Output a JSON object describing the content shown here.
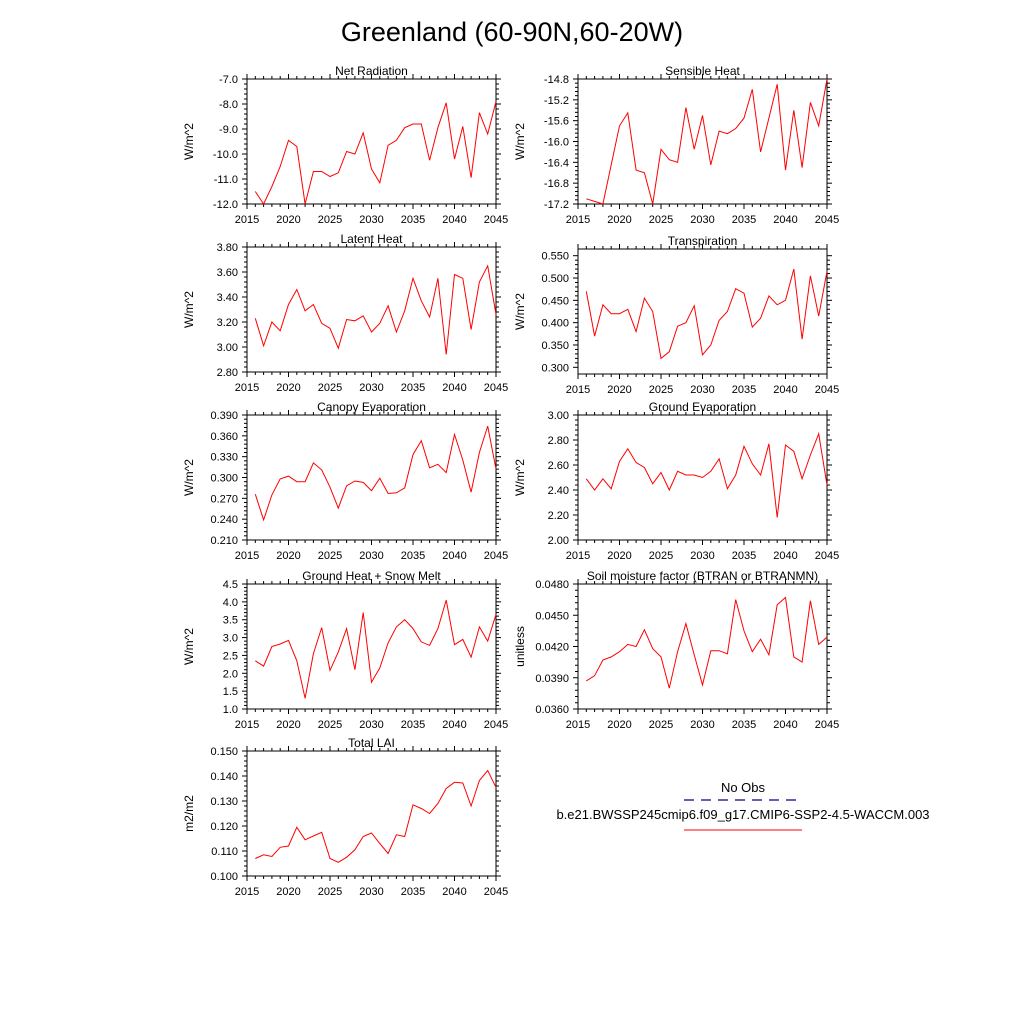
{
  "figure_title": "Greenland (60-90N,60-20W)",
  "colors": {
    "model_line": "#ff0000",
    "obs_line": "#00008b",
    "axis": "#000000"
  },
  "legend": {
    "obs_label": "No Obs",
    "model_label": "b.e21.BWSSP245cmip6.f09_g17.CMIP6-SSP2-4.5-WACCM.003"
  },
  "chart_data": [
    {
      "type": "line",
      "title": "Net Radiation",
      "ylabel": "W/m^2",
      "xlim": [
        2015,
        2045
      ],
      "ylim": [
        -12.0,
        -7.0
      ],
      "xticks": [
        2015,
        2020,
        2025,
        2030,
        2035,
        2040,
        2045
      ],
      "xtick_labels": [
        "2015",
        "2020",
        "2025",
        "2030",
        "2035",
        "2040",
        "2045"
      ],
      "yticks": [
        -12.0,
        -11.0,
        -10.0,
        -9.0,
        -8.0,
        -7.0
      ],
      "ytick_labels": [
        "-12.0",
        "-11.0",
        "-10.0",
        "-9.0",
        "-8.0",
        "-7.0"
      ],
      "x": [
        2016,
        2017,
        2018,
        2019,
        2020,
        2021,
        2022,
        2023,
        2024,
        2025,
        2026,
        2027,
        2028,
        2029,
        2030,
        2031,
        2032,
        2033,
        2034,
        2035,
        2036,
        2037,
        2038,
        2039,
        2040,
        2041,
        2042,
        2043,
        2044,
        2045
      ],
      "series": [
        {
          "values": [
            -11.5,
            -12.0,
            -11.3,
            -10.5,
            -9.45,
            -9.7,
            -12.0,
            -10.7,
            -10.7,
            -10.9,
            -10.75,
            -9.9,
            -10.0,
            -9.15,
            -10.6,
            -11.15,
            -9.65,
            -9.45,
            -8.95,
            -8.8,
            -8.8,
            -10.25,
            -8.95,
            -7.95,
            -10.2,
            -8.9,
            -10.95,
            -8.35,
            -9.2,
            -7.9
          ]
        }
      ]
    },
    {
      "type": "line",
      "title": "Sensible Heat",
      "ylabel": "W/m^2",
      "xlim": [
        2015,
        2045
      ],
      "ylim": [
        -17.2,
        -14.8
      ],
      "xticks": [
        2015,
        2020,
        2025,
        2030,
        2035,
        2040,
        2045
      ],
      "xtick_labels": [
        "2015",
        "2020",
        "2025",
        "2030",
        "2035",
        "2040",
        "2045"
      ],
      "yticks": [
        -17.2,
        -16.8,
        -16.4,
        -16.0,
        -15.6,
        -15.2,
        -14.8
      ],
      "ytick_labels": [
        "-17.2",
        "-16.8",
        "-16.4",
        "-16.0",
        "-15.6",
        "-15.2",
        "-14.8"
      ],
      "x": [
        2016,
        2017,
        2018,
        2019,
        2020,
        2021,
        2022,
        2023,
        2024,
        2025,
        2026,
        2027,
        2028,
        2029,
        2030,
        2031,
        2032,
        2033,
        2034,
        2035,
        2036,
        2037,
        2038,
        2039,
        2040,
        2041,
        2042,
        2043,
        2044,
        2045
      ],
      "series": [
        {
          "values": [
            -17.1,
            -17.15,
            -17.2,
            -16.45,
            -15.7,
            -15.45,
            -16.55,
            -16.6,
            -17.2,
            -16.15,
            -16.35,
            -16.4,
            -15.35,
            -16.15,
            -15.5,
            -16.45,
            -15.8,
            -15.85,
            -15.75,
            -15.55,
            -15.0,
            -16.2,
            -15.55,
            -14.9,
            -16.55,
            -15.4,
            -16.5,
            -15.25,
            -15.7,
            -14.8
          ]
        }
      ]
    },
    {
      "type": "line",
      "title": "Latent Heat",
      "ylabel": "W/m^2",
      "xlim": [
        2015,
        2045
      ],
      "ylim": [
        2.8,
        3.8
      ],
      "xticks": [
        2015,
        2020,
        2025,
        2030,
        2035,
        2040,
        2045
      ],
      "xtick_labels": [
        "2015",
        "2020",
        "2025",
        "2030",
        "2035",
        "2040",
        "2045"
      ],
      "yticks": [
        2.8,
        3.0,
        3.2,
        3.4,
        3.6,
        3.8
      ],
      "ytick_labels": [
        "2.80",
        "3.00",
        "3.20",
        "3.40",
        "3.60",
        "3.80"
      ],
      "x": [
        2016,
        2017,
        2018,
        2019,
        2020,
        2021,
        2022,
        2023,
        2024,
        2025,
        2026,
        2027,
        2028,
        2029,
        2030,
        2031,
        2032,
        2033,
        2034,
        2035,
        2036,
        2037,
        2038,
        2039,
        2040,
        2041,
        2042,
        2043,
        2044,
        2045
      ],
      "series": [
        {
          "values": [
            3.23,
            3.01,
            3.2,
            3.13,
            3.34,
            3.46,
            3.29,
            3.34,
            3.19,
            3.15,
            2.99,
            3.22,
            3.21,
            3.25,
            3.12,
            3.19,
            3.33,
            3.12,
            3.29,
            3.55,
            3.37,
            3.24,
            3.55,
            2.94,
            3.58,
            3.55,
            3.14,
            3.52,
            3.65,
            3.26
          ]
        }
      ]
    },
    {
      "type": "line",
      "title": "Transpiration",
      "ylabel": "W/m^2",
      "xlim": [
        2015,
        2045
      ],
      "ylim": [
        0.285,
        0.565
      ],
      "xticks": [
        2015,
        2020,
        2025,
        2030,
        2035,
        2040,
        2045
      ],
      "xtick_labels": [
        "2015",
        "2020",
        "2025",
        "2030",
        "2035",
        "2040",
        "2045"
      ],
      "yticks": [
        0.3,
        0.35,
        0.4,
        0.45,
        0.5,
        0.55
      ],
      "ytick_labels": [
        "0.300",
        "0.350",
        "0.400",
        "0.450",
        "0.500",
        "0.550"
      ],
      "x": [
        2016,
        2017,
        2018,
        2019,
        2020,
        2021,
        2022,
        2023,
        2024,
        2025,
        2026,
        2027,
        2028,
        2029,
        2030,
        2031,
        2032,
        2033,
        2034,
        2035,
        2036,
        2037,
        2038,
        2039,
        2040,
        2041,
        2042,
        2043,
        2044,
        2045
      ],
      "series": [
        {
          "values": [
            0.47,
            0.37,
            0.44,
            0.42,
            0.42,
            0.43,
            0.38,
            0.455,
            0.425,
            0.32,
            0.335,
            0.392,
            0.4,
            0.438,
            0.328,
            0.35,
            0.405,
            0.425,
            0.476,
            0.466,
            0.39,
            0.41,
            0.46,
            0.44,
            0.45,
            0.52,
            0.363,
            0.505,
            0.415,
            0.515
          ]
        }
      ]
    },
    {
      "type": "line",
      "title": "Canopy Evaporation",
      "ylabel": "W/m^2",
      "xlim": [
        2015,
        2045
      ],
      "ylim": [
        0.21,
        0.39
      ],
      "xticks": [
        2015,
        2020,
        2025,
        2030,
        2035,
        2040,
        2045
      ],
      "xtick_labels": [
        "2015",
        "2020",
        "2025",
        "2030",
        "2035",
        "2040",
        "2045"
      ],
      "yticks": [
        0.21,
        0.24,
        0.27,
        0.3,
        0.33,
        0.36,
        0.39
      ],
      "ytick_labels": [
        "0.210",
        "0.240",
        "0.270",
        "0.300",
        "0.330",
        "0.360",
        "0.390"
      ],
      "x": [
        2016,
        2017,
        2018,
        2019,
        2020,
        2021,
        2022,
        2023,
        2024,
        2025,
        2026,
        2027,
        2028,
        2029,
        2030,
        2031,
        2032,
        2033,
        2034,
        2035,
        2036,
        2037,
        2038,
        2039,
        2040,
        2041,
        2042,
        2043,
        2044,
        2045
      ],
      "series": [
        {
          "values": [
            0.276,
            0.239,
            0.275,
            0.298,
            0.302,
            0.294,
            0.294,
            0.321,
            0.311,
            0.286,
            0.256,
            0.288,
            0.295,
            0.293,
            0.281,
            0.299,
            0.277,
            0.278,
            0.285,
            0.333,
            0.353,
            0.314,
            0.319,
            0.307,
            0.362,
            0.325,
            0.279,
            0.336,
            0.374,
            0.312
          ]
        }
      ]
    },
    {
      "type": "line",
      "title": "Ground Evaporation",
      "ylabel": "W/m^2",
      "xlim": [
        2015,
        2045
      ],
      "ylim": [
        2.0,
        3.0
      ],
      "xticks": [
        2015,
        2020,
        2025,
        2030,
        2035,
        2040,
        2045
      ],
      "xtick_labels": [
        "2015",
        "2020",
        "2025",
        "2030",
        "2035",
        "2040",
        "2045"
      ],
      "yticks": [
        2.0,
        2.2,
        2.4,
        2.6,
        2.8,
        3.0
      ],
      "ytick_labels": [
        "2.00",
        "2.20",
        "2.40",
        "2.60",
        "2.80",
        "3.00"
      ],
      "x": [
        2016,
        2017,
        2018,
        2019,
        2020,
        2021,
        2022,
        2023,
        2024,
        2025,
        2026,
        2027,
        2028,
        2029,
        2030,
        2031,
        2032,
        2033,
        2034,
        2035,
        2036,
        2037,
        2038,
        2039,
        2040,
        2041,
        2042,
        2043,
        2044,
        2045
      ],
      "series": [
        {
          "values": [
            2.49,
            2.4,
            2.49,
            2.41,
            2.63,
            2.73,
            2.62,
            2.58,
            2.45,
            2.54,
            2.4,
            2.55,
            2.52,
            2.52,
            2.5,
            2.55,
            2.65,
            2.41,
            2.52,
            2.75,
            2.61,
            2.52,
            2.77,
            2.18,
            2.76,
            2.71,
            2.49,
            2.68,
            2.85,
            2.44
          ]
        }
      ]
    },
    {
      "type": "line",
      "title": "Ground Heat + Snow Melt",
      "ylabel": "W/m^2",
      "xlim": [
        2015,
        2045
      ],
      "ylim": [
        1.0,
        4.5
      ],
      "xticks": [
        2015,
        2020,
        2025,
        2030,
        2035,
        2040,
        2045
      ],
      "xtick_labels": [
        "2015",
        "2020",
        "2025",
        "2030",
        "2035",
        "2040",
        "2045"
      ],
      "yticks": [
        1.0,
        1.5,
        2.0,
        2.5,
        3.0,
        3.5,
        4.0,
        4.5
      ],
      "ytick_labels": [
        "1.0",
        "1.5",
        "2.0",
        "2.5",
        "3.0",
        "3.5",
        "4.0",
        "4.5"
      ],
      "x": [
        2016,
        2017,
        2018,
        2019,
        2020,
        2021,
        2022,
        2023,
        2024,
        2025,
        2026,
        2027,
        2028,
        2029,
        2030,
        2031,
        2032,
        2033,
        2034,
        2035,
        2036,
        2037,
        2038,
        2039,
        2040,
        2041,
        2042,
        2043,
        2044,
        2045
      ],
      "series": [
        {
          "values": [
            2.35,
            2.2,
            2.75,
            2.82,
            2.92,
            2.35,
            1.3,
            2.55,
            3.28,
            2.08,
            2.6,
            3.25,
            2.1,
            3.7,
            1.75,
            2.15,
            2.85,
            3.3,
            3.5,
            3.25,
            2.88,
            2.78,
            3.25,
            4.05,
            2.8,
            2.95,
            2.45,
            3.3,
            2.9,
            3.65
          ]
        }
      ]
    },
    {
      "type": "line",
      "title": "Soil moisture factor (BTRAN or BTRANMN)",
      "ylabel": "unitless",
      "xlim": [
        2015,
        2045
      ],
      "ylim": [
        0.036,
        0.048
      ],
      "xticks": [
        2015,
        2020,
        2025,
        2030,
        2035,
        2040,
        2045
      ],
      "xtick_labels": [
        "2015",
        "2020",
        "2025",
        "2030",
        "2035",
        "2040",
        "2045"
      ],
      "yticks": [
        0.036,
        0.039,
        0.042,
        0.045,
        0.048
      ],
      "ytick_labels": [
        "0.0360",
        "0.0390",
        "0.0420",
        "0.0450",
        "0.0480"
      ],
      "x": [
        2016,
        2017,
        2018,
        2019,
        2020,
        2021,
        2022,
        2023,
        2024,
        2025,
        2026,
        2027,
        2028,
        2029,
        2030,
        2031,
        2032,
        2033,
        2034,
        2035,
        2036,
        2037,
        2038,
        2039,
        2040,
        2041,
        2042,
        2043,
        2044,
        2045
      ],
      "series": [
        {
          "values": [
            0.0387,
            0.0392,
            0.0407,
            0.041,
            0.0415,
            0.0422,
            0.042,
            0.0436,
            0.0418,
            0.041,
            0.038,
            0.0415,
            0.0442,
            0.0412,
            0.0383,
            0.0416,
            0.0416,
            0.0413,
            0.0465,
            0.0435,
            0.0415,
            0.0427,
            0.0412,
            0.046,
            0.0467,
            0.041,
            0.0405,
            0.0464,
            0.0422,
            0.0429
          ]
        }
      ]
    },
    {
      "type": "line",
      "title": "Total LAI",
      "ylabel": "m2/m2",
      "xlim": [
        2015,
        2045
      ],
      "ylim": [
        0.1,
        0.15
      ],
      "xticks": [
        2015,
        2020,
        2025,
        2030,
        2035,
        2040,
        2045
      ],
      "xtick_labels": [
        "2015",
        "2020",
        "2025",
        "2030",
        "2035",
        "2040",
        "2045"
      ],
      "yticks": [
        0.1,
        0.11,
        0.12,
        0.13,
        0.14,
        0.15
      ],
      "ytick_labels": [
        "0.100",
        "0.110",
        "0.120",
        "0.130",
        "0.140",
        "0.150"
      ],
      "x": [
        2016,
        2017,
        2018,
        2019,
        2020,
        2021,
        2022,
        2023,
        2024,
        2025,
        2026,
        2027,
        2028,
        2029,
        2030,
        2031,
        2032,
        2033,
        2034,
        2035,
        2036,
        2037,
        2038,
        2039,
        2040,
        2041,
        2042,
        2043,
        2044,
        2045
      ],
      "series": [
        {
          "values": [
            0.107,
            0.1085,
            0.1078,
            0.1115,
            0.112,
            0.1195,
            0.1145,
            0.116,
            0.1175,
            0.107,
            0.1055,
            0.1075,
            0.1105,
            0.1158,
            0.1172,
            0.113,
            0.109,
            0.1165,
            0.1158,
            0.1285,
            0.127,
            0.125,
            0.129,
            0.135,
            0.1375,
            0.1372,
            0.128,
            0.1382,
            0.1422,
            0.1355
          ]
        }
      ]
    }
  ]
}
